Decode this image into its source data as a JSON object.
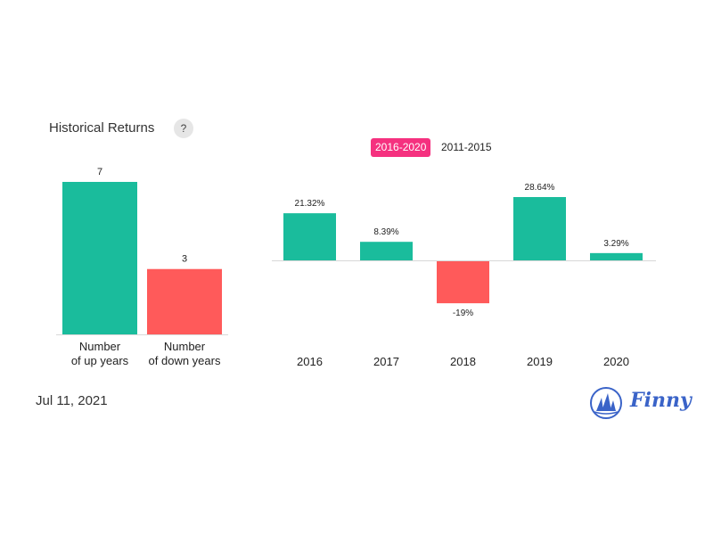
{
  "header": {
    "title": "Historical Returns",
    "help_label": "?"
  },
  "tabs": [
    {
      "label": "2016-2020",
      "active": true
    },
    {
      "label": "2011-2015",
      "active": false
    }
  ],
  "footer": {
    "date": "Jul 11, 2021",
    "brand": "Finny"
  },
  "colors": {
    "positive": "#1abc9c",
    "negative": "#ff5a5a",
    "accent": "#f5317f",
    "brand": "#3a63c8"
  },
  "chart_data": [
    {
      "type": "bar",
      "categories": [
        [
          "Number",
          "of up years"
        ],
        [
          "Number",
          "of down years"
        ]
      ],
      "values": [
        7,
        3
      ],
      "value_labels": [
        "7",
        "3"
      ],
      "ylim": [
        0,
        7
      ]
    },
    {
      "type": "bar",
      "categories": [
        "2016",
        "2017",
        "2018",
        "2019",
        "2020"
      ],
      "values": [
        21.32,
        8.39,
        -19,
        28.64,
        3.29
      ],
      "value_labels": [
        "21.32%",
        "8.39%",
        "-19%",
        "28.64%",
        "3.29%"
      ]
    }
  ]
}
